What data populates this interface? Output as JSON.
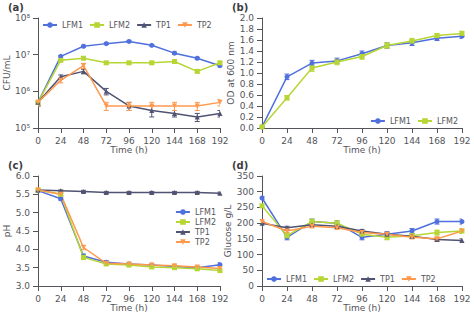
{
  "chart_data": [
    {
      "type": "line",
      "title": "(a)",
      "xlabel": "Time (h)",
      "ylabel": "CFU/mL",
      "x": [
        0,
        24,
        48,
        72,
        96,
        120,
        144,
        168,
        192
      ],
      "xlim": [
        0,
        192
      ],
      "xticks": [
        0,
        24,
        48,
        72,
        96,
        120,
        144,
        168,
        192
      ],
      "ylim": [
        100000.0,
        100000000.0
      ],
      "yticks": [
        {
          "value": 100000.0,
          "label": "10⁵"
        },
        {
          "value": 1000000.0,
          "label": "10⁶"
        },
        {
          "value": 10000000.0,
          "label": "10⁷"
        },
        {
          "value": 100000000.0,
          "label": "10⁸"
        }
      ],
      "log": "y",
      "grid": false,
      "legend": "upper left",
      "series": [
        {
          "name": "LFM1",
          "marker": "circle",
          "values": [
            500000.0,
            9000000.0,
            17000000.0,
            20000000.0,
            23000000.0,
            18000000.0,
            11000000.0,
            8000000.0,
            5000000.0
          ],
          "errors": [
            100000.0,
            500000.0,
            1000000.0,
            1000000.0,
            1500000.0,
            1000000.0,
            800000.0,
            500000.0,
            400000.0
          ]
        },
        {
          "name": "LFM2",
          "marker": "square",
          "values": [
            500000.0,
            7000000.0,
            8000000.0,
            6000000.0,
            6000000.0,
            6000000.0,
            6500000.0,
            3500000.0,
            6000000.0
          ],
          "errors": [
            100000.0,
            400000.0,
            600000.0,
            500000.0,
            500000.0,
            500000.0,
            500000.0,
            300000.0,
            500000.0
          ]
        },
        {
          "name": "TP1",
          "marker": "triangle-up",
          "values": [
            500000.0,
            2500000.0,
            3500000.0,
            1000000.0,
            400000.0,
            300000.0,
            250000.0,
            200000.0,
            250000.0
          ],
          "errors": [
            100000.0,
            300000.0,
            500000.0,
            200000.0,
            100000.0,
            100000.0,
            50000.0,
            50000.0,
            50000.0
          ]
        },
        {
          "name": "TP2",
          "marker": "triangle-down",
          "values": [
            500000.0,
            2000000.0,
            5000000.0,
            400000.0,
            400000.0,
            400000.0,
            400000.0,
            400000.0,
            500000.0
          ],
          "errors": [
            100000.0,
            300000.0,
            800000.0,
            100000.0,
            100000.0,
            100000.0,
            100000.0,
            100000.0,
            100000.0
          ]
        }
      ]
    },
    {
      "type": "line",
      "title": "(b)",
      "xlabel": "Time (h)",
      "ylabel": "OD at 600 nm",
      "x": [
        0,
        24,
        48,
        72,
        96,
        120,
        144,
        168,
        192
      ],
      "xlim": [
        0,
        192
      ],
      "xticks": [
        0,
        24,
        48,
        72,
        96,
        120,
        144,
        168,
        192
      ],
      "ylim": [
        0,
        2.0
      ],
      "yticks": [
        {
          "value": 0,
          "label": "0.0"
        },
        0.2,
        0.4,
        0.6,
        0.8,
        {
          "value": 1.0,
          "label": "1.0"
        },
        1.2,
        1.4,
        1.6,
        1.8,
        {
          "value": 2.0,
          "label": "2.0"
        }
      ],
      "grid": false,
      "legend": "lower right",
      "series": [
        {
          "name": "LFM1",
          "marker": "circle",
          "values": [
            0.02,
            0.93,
            1.18,
            1.22,
            1.35,
            1.5,
            1.55,
            1.63,
            1.67
          ],
          "errors": [
            0.01,
            0.05,
            0.05,
            0.05,
            0.05,
            0.05,
            0.05,
            0.04,
            0.04
          ]
        },
        {
          "name": "LFM2",
          "marker": "square",
          "values": [
            0.02,
            0.55,
            1.09,
            1.2,
            1.3,
            1.5,
            1.58,
            1.68,
            1.72
          ],
          "errors": [
            0.01,
            0.04,
            0.06,
            0.05,
            0.05,
            0.05,
            0.05,
            0.04,
            0.04
          ]
        }
      ]
    },
    {
      "type": "line",
      "title": "(c)",
      "xlabel": "Time (h)",
      "ylabel": "pH",
      "x": [
        0,
        24,
        48,
        72,
        96,
        120,
        144,
        168,
        192
      ],
      "xlim": [
        0,
        192
      ],
      "xticks": [
        0,
        24,
        48,
        72,
        96,
        120,
        144,
        168,
        192
      ],
      "ylim": [
        3.0,
        6.0
      ],
      "yticks": [
        {
          "value": 3.0,
          "label": "3.0"
        },
        3.5,
        {
          "value": 4.0,
          "label": "4.0"
        },
        4.5,
        {
          "value": 5.0,
          "label": "5.0"
        },
        5.5,
        {
          "value": 6.0,
          "label": "6.0"
        }
      ],
      "grid": false,
      "legend": "right",
      "series": [
        {
          "name": "LFM1",
          "marker": "circle",
          "values": [
            5.6,
            5.38,
            3.82,
            3.65,
            3.6,
            3.57,
            3.53,
            3.5,
            3.58
          ],
          "errors": [
            0.03,
            0.04,
            0.05,
            0.04,
            0.03,
            0.03,
            0.03,
            0.03,
            0.05
          ]
        },
        {
          "name": "LFM2",
          "marker": "square",
          "values": [
            5.62,
            5.5,
            3.78,
            3.6,
            3.57,
            3.52,
            3.5,
            3.47,
            3.42
          ],
          "errors": [
            0.03,
            0.03,
            0.06,
            0.04,
            0.03,
            0.03,
            0.03,
            0.03,
            0.03
          ]
        },
        {
          "name": "TP1",
          "marker": "triangle-up",
          "values": [
            5.62,
            5.6,
            5.58,
            5.55,
            5.55,
            5.55,
            5.55,
            5.55,
            5.53
          ],
          "errors": [
            0.02,
            0.02,
            0.03,
            0.03,
            0.03,
            0.03,
            0.03,
            0.03,
            0.03
          ]
        },
        {
          "name": "TP2",
          "marker": "triangle-down",
          "values": [
            5.62,
            5.5,
            4.05,
            3.62,
            3.6,
            3.57,
            3.55,
            3.52,
            3.48
          ],
          "errors": [
            0.03,
            0.04,
            0.06,
            0.04,
            0.03,
            0.03,
            0.03,
            0.03,
            0.05
          ]
        }
      ]
    },
    {
      "type": "line",
      "title": "(d)",
      "xlabel": "Time (h)",
      "ylabel": "Glucose g/L",
      "x": [
        0,
        24,
        48,
        72,
        96,
        120,
        144,
        168,
        192
      ],
      "xlim": [
        0,
        192
      ],
      "xticks": [
        0,
        24,
        48,
        72,
        96,
        120,
        144,
        168,
        192
      ],
      "ylim": [
        0,
        350
      ],
      "yticks": [
        0,
        50,
        100,
        150,
        200,
        250,
        300,
        350
      ],
      "grid": false,
      "legend": "lower left",
      "series": [
        {
          "name": "LFM1",
          "marker": "circle",
          "values": [
            280,
            155,
            205,
            200,
            155,
            165,
            175,
            205,
            205
          ],
          "errors": [
            5,
            8,
            8,
            8,
            8,
            8,
            8,
            8,
            8
          ]
        },
        {
          "name": "LFM2",
          "marker": "square",
          "values": [
            255,
            160,
            205,
            200,
            165,
            155,
            160,
            170,
            175
          ],
          "errors": [
            5,
            8,
            8,
            8,
            8,
            8,
            8,
            8,
            8
          ]
        },
        {
          "name": "TP1",
          "marker": "triangle-up",
          "values": [
            200,
            185,
            195,
            190,
            175,
            165,
            158,
            148,
            145
          ],
          "errors": [
            5,
            5,
            5,
            5,
            5,
            5,
            5,
            5,
            5
          ]
        },
        {
          "name": "TP2",
          "marker": "triangle-down",
          "values": [
            205,
            175,
            190,
            185,
            170,
            165,
            155,
            150,
            175
          ],
          "errors": [
            5,
            5,
            5,
            5,
            5,
            5,
            5,
            5,
            5
          ]
        }
      ]
    }
  ]
}
